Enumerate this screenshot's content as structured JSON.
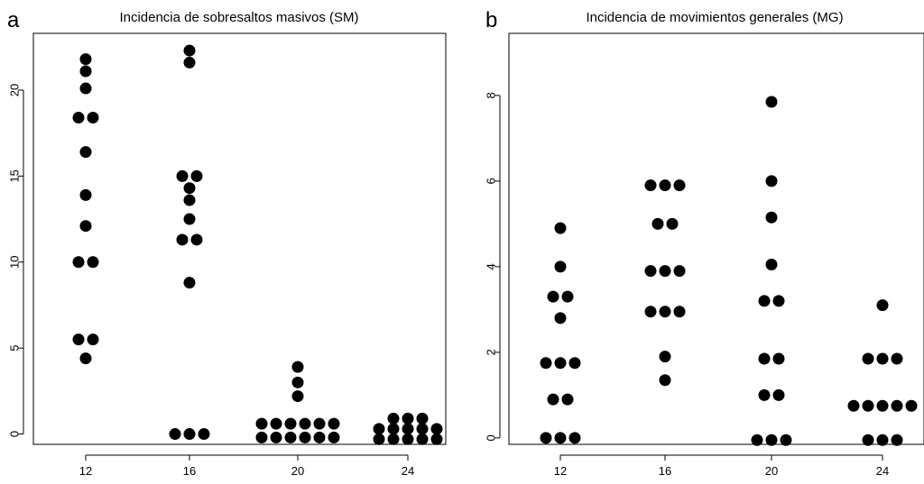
{
  "chart_data": [
    {
      "type": "scatter",
      "panel_label": "a",
      "title": "Incidencia de sobresaltos masivos (SM)",
      "xlabel": "",
      "ylabel": "",
      "x_ticks": [
        "12",
        "16",
        "20",
        "24"
      ],
      "y_ticks": [
        0,
        5,
        10,
        15,
        20
      ],
      "ylim": [
        -0.6,
        23.3
      ],
      "grid": false,
      "legend": "none",
      "marker_color": "#000000",
      "series": [
        {
          "category": "12",
          "values": [
            21.8,
            21.1,
            20.1,
            18.4,
            18.4,
            16.4,
            13.9,
            12.1,
            10.0,
            10.0,
            5.5,
            5.5,
            4.4
          ]
        },
        {
          "category": "16",
          "values": [
            22.3,
            21.6,
            15.0,
            15.0,
            14.3,
            13.6,
            12.5,
            11.3,
            11.3,
            8.8,
            0.0,
            0.0,
            0.0
          ]
        },
        {
          "category": "20",
          "values": [
            3.9,
            3.0,
            2.2,
            0.6,
            0.6,
            0.6,
            0.6,
            0.6,
            0.6,
            -0.2,
            -0.2,
            -0.2,
            -0.2,
            -0.2,
            -0.2
          ]
        },
        {
          "category": "24",
          "values": [
            0.9,
            0.9,
            0.9,
            0.3,
            0.3,
            0.3,
            0.3,
            0.3,
            -0.3,
            -0.3,
            -0.3,
            -0.3,
            -0.3
          ]
        }
      ]
    },
    {
      "type": "scatter",
      "panel_label": "b",
      "title": "Incidencia de movimientos generales (MG)",
      "xlabel": "",
      "ylabel": "",
      "x_ticks": [
        "12",
        "16",
        "20",
        "24"
      ],
      "y_ticks": [
        0,
        2,
        4,
        6,
        8
      ],
      "ylim": [
        -0.15,
        9.45
      ],
      "grid": false,
      "legend": "none",
      "marker_color": "#000000",
      "series": [
        {
          "category": "12",
          "values": [
            4.9,
            4.0,
            3.3,
            3.3,
            2.8,
            1.75,
            1.75,
            1.75,
            0.9,
            0.9,
            0.0,
            0.0,
            0.0
          ]
        },
        {
          "category": "16",
          "values": [
            5.9,
            5.9,
            5.9,
            5.0,
            5.0,
            3.9,
            3.9,
            3.9,
            2.95,
            2.95,
            2.95,
            1.9,
            1.35
          ]
        },
        {
          "category": "20",
          "values": [
            7.85,
            6.0,
            5.15,
            4.05,
            3.2,
            3.2,
            1.85,
            1.85,
            1.0,
            1.0,
            -0.05,
            -0.05,
            -0.05
          ]
        },
        {
          "category": "24",
          "values": [
            3.1,
            1.85,
            1.85,
            1.85,
            0.75,
            0.75,
            0.75,
            0.75,
            0.75,
            -0.05,
            -0.05,
            -0.05
          ]
        }
      ]
    }
  ]
}
